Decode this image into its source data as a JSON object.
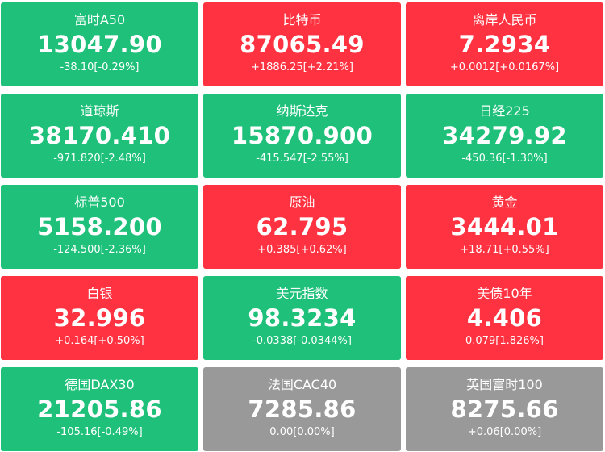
{
  "colors": {
    "down": "#1ec07a",
    "up": "#fe3240",
    "flat": "#999999",
    "text": "#ffffff"
  },
  "tiles": [
    {
      "name": "富时A50",
      "price": "13047.90",
      "change": "-38.10[-0.29%]",
      "trend": "down"
    },
    {
      "name": "比特币",
      "price": "87065.49",
      "change": "+1886.25[+2.21%]",
      "trend": "up"
    },
    {
      "name": "离岸人民币",
      "price": "7.2934",
      "change": "+0.0012[+0.0167%]",
      "trend": "up"
    },
    {
      "name": "道琼斯",
      "price": "38170.410",
      "change": "-971.820[-2.48%]",
      "trend": "down"
    },
    {
      "name": "纳斯达克",
      "price": "15870.900",
      "change": "-415.547[-2.55%]",
      "trend": "down"
    },
    {
      "name": "日经225",
      "price": "34279.92",
      "change": "-450.36[-1.30%]",
      "trend": "down"
    },
    {
      "name": "标普500",
      "price": "5158.200",
      "change": "-124.500[-2.36%]",
      "trend": "down"
    },
    {
      "name": "原油",
      "price": "62.795",
      "change": "+0.385[+0.62%]",
      "trend": "up"
    },
    {
      "name": "黄金",
      "price": "3444.01",
      "change": "+18.71[+0.55%]",
      "trend": "up"
    },
    {
      "name": "白银",
      "price": "32.996",
      "change": "+0.164[+0.50%]",
      "trend": "up"
    },
    {
      "name": "美元指数",
      "price": "98.3234",
      "change": "-0.0338[-0.0344%]",
      "trend": "down"
    },
    {
      "name": "美债10年",
      "price": "4.406",
      "change": "0.079[1.826%]",
      "trend": "up"
    },
    {
      "name": "德国DAX30",
      "price": "21205.86",
      "change": "-105.16[-0.49%]",
      "trend": "down"
    },
    {
      "name": "法国CAC40",
      "price": "7285.86",
      "change": "0.00[0.00%]",
      "trend": "flat"
    },
    {
      "name": "英国富时100",
      "price": "8275.66",
      "change": "+0.06[0.00%]",
      "trend": "flat"
    }
  ]
}
